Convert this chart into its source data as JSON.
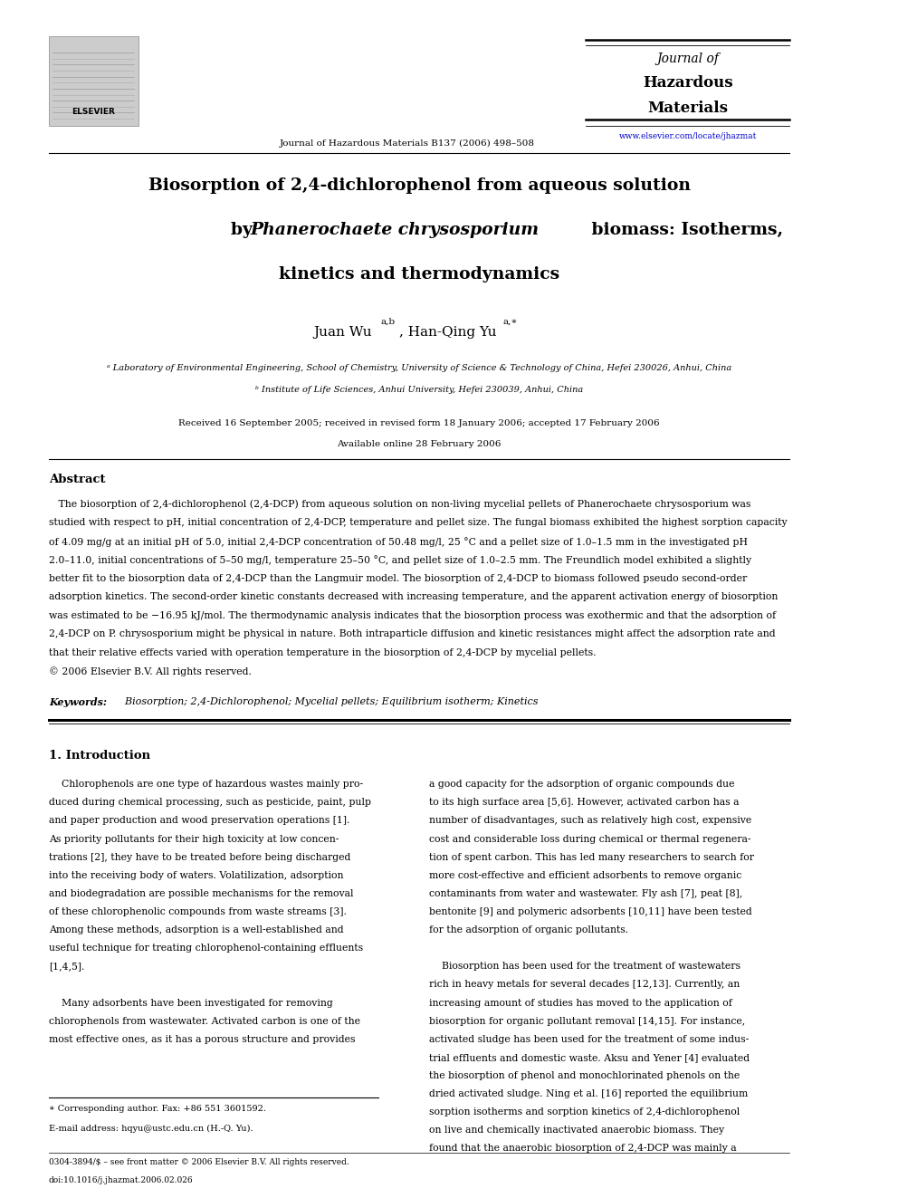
{
  "background_color": "#ffffff",
  "page_width": 9.92,
  "page_height": 13.23,
  "journal_name_line1": "Journal of",
  "journal_name_line2": "Hazardous",
  "journal_name_line3": "Materials",
  "journal_ref": "Journal of Hazardous Materials B137 (2006) 498–508",
  "journal_url": "www.elsevier.com/locate/jhazmat",
  "elsevier_text": "ELSEVIER",
  "paper_title_line1": "Biosorption of 2,4-dichlorophenol from aqueous solution",
  "paper_title_line2_italic": "Phanerochaete chrysosporium",
  "paper_title_line3": "kinetics and thermodynamics",
  "received_line1": "Received 16 September 2005; received in revised form 18 January 2006; accepted 17 February 2006",
  "received_line2": "Available online 28 February 2006",
  "abstract_heading": "Abstract",
  "keywords_label": "Keywords:",
  "keywords_text": "  Biosorption; 2,4-Dichlorophenol; Mycelial pellets; Equilibrium isotherm; Kinetics",
  "section1_heading": "1. Introduction",
  "footnote_star": "∗ Corresponding author. Fax: +86 551 3601592.",
  "footnote_email": "E-mail address: hqyu@ustc.edu.cn (H.-Q. Yu).",
  "footnote_issn": "0304-3894/$ – see front matter © 2006 Elsevier B.V. All rights reserved.",
  "footnote_doi": "doi:10.1016/j.jhazmat.2006.02.026"
}
